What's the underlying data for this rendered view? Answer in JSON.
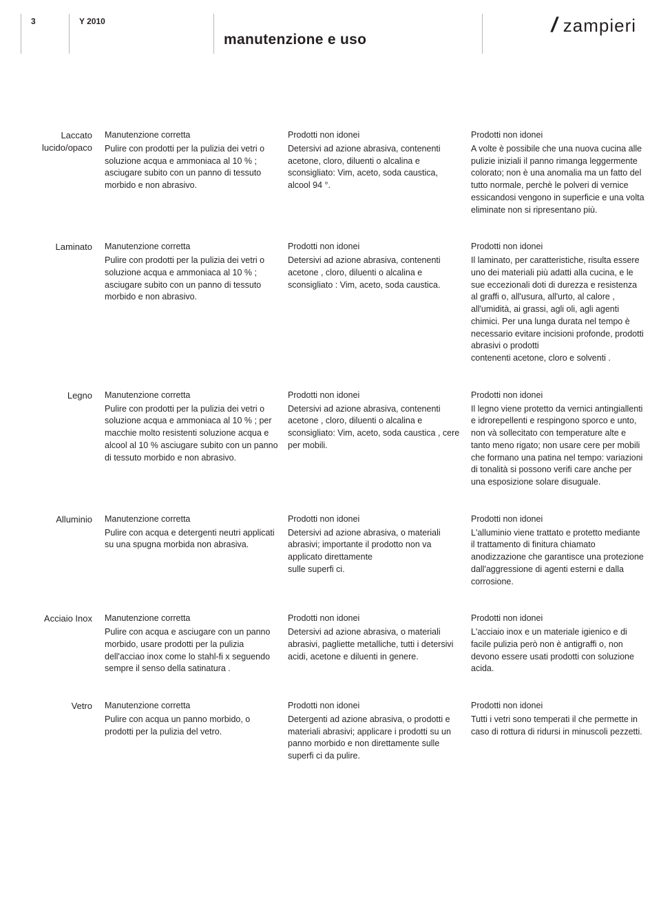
{
  "header": {
    "page_number": "3",
    "year": "Y 2010",
    "title": "manutenzione e uso",
    "brand": "zampieri"
  },
  "column_headings": {
    "c1": "Manutenzione corretta",
    "c2": "Prodotti non idonei",
    "c3": "Prodotti non idonei"
  },
  "materials": [
    {
      "label": "Laccato lucido/opaco",
      "c1": "Pulire con prodotti per la pulizia dei vetri o soluzione acqua e ammoniaca al 10 % ; asciugare subito con un panno di tessuto morbido e non abrasivo.",
      "c2": "Detersivi ad azione abrasiva, contenenti acetone, cloro, diluenti o alcalina e sconsigliato:  Vim, aceto, soda caustica, alcool 94 °.",
      "c3": "A volte è possibile che una nuova cucina alle pulizie iniziali il panno rimanga leggermente colorato; non è una anomalia ma un fatto del tutto normale, perchè le polveri di vernice essicandosi vengono in superficie e una volta eliminate non si ripresentano più."
    },
    {
      "label": "Laminato",
      "c1": "Pulire con prodotti per la pulizia dei vetri o soluzione acqua e ammoniaca al 10 % ; asciugare subito con un panno di tessuto morbido e non abrasivo.",
      "c2": "Detersivi ad azione abrasiva, contenenti acetone , cloro, diluenti o alcalina e sconsigliato : Vim, aceto, soda caustica.",
      "c3": "Il laminato, per caratteristiche, risulta essere uno dei materiali più adatti alla cucina, e le sue eccezionali doti di durezza e resistenza al graffi o, all'usura, all'urto, al calore , all'umidità, ai grassi, agli oli, agli agenti chimici. Per una lunga durata nel tempo è necessario evitare incisioni profonde, prodotti abrasivi o prodotti\ncontenenti acetone, cloro e solventi ."
    },
    {
      "label": "Legno",
      "c1": "Pulire con prodotti per la pulizia dei vetri o soluzione acqua e ammoniaca al 10 % ; per macchie molto resistenti soluzione acqua e alcool al 10 % asciugare subito con un panno di tessuto morbido e non abrasivo.",
      "c2": "Detersivi ad azione abrasiva, contenenti acetone , cloro, diluenti o alcalina e sconsigliato: Vim, aceto, soda caustica , cere per mobili.",
      "c3": "Il legno viene protetto da vernici antingiallenti e idrorepellenti e respingono sporco e unto, non và sollecitato con temperature alte e tanto meno rigato; non usare cere per mobili che formano una patina nel tempo: variazioni di tonalità si possono verifi care anche per una esposizione solare disuguale."
    },
    {
      "label": "Alluminio",
      "c1": "Pulire con acqua e detergenti neutri applicati su una spugna morbida non abrasiva.",
      "c2": "Detersivi ad azione abrasiva, o materiali abrasivi; importante il prodotto non va applicato direttamente\nsulle superfi ci.",
      "c3": "L'alluminio viene trattato e protetto mediante il trattamento di finitura chiamato anodizzazione che garantisce una protezione dall'aggressione di agenti esterni e dalla corrosione."
    },
    {
      "label": "Acciaio Inox",
      "c1": "Pulire con acqua e asciugare con un panno morbido, usare prodotti per la pulizia dell'acciao inox come lo stahl-fi x seguendo sempre il senso della satinatura .",
      "c2": "Detersivi ad azione abrasiva, o materiali abrasivi, pagliette metalliche, tutti i detersivi acidi, acetone e diluenti in genere.",
      "c3": "L'acciaio inox e un materiale igienico e di facile pulizia però non è antigraffi o, non devono essere usati prodotti con soluzione acida."
    },
    {
      "label": "Vetro",
      "c1": "Pulire con acqua un panno morbido, o prodotti per la pulizia del vetro.",
      "c2": "Detergenti ad azione abrasiva, o prodotti e materiali abrasivi; applicare i prodotti su un panno morbido e non direttamente sulle superfi ci da pulire.",
      "c3": "Tutti i vetri sono temperati il che permette in caso di rottura di ridursi in minuscoli pezzetti."
    }
  ]
}
